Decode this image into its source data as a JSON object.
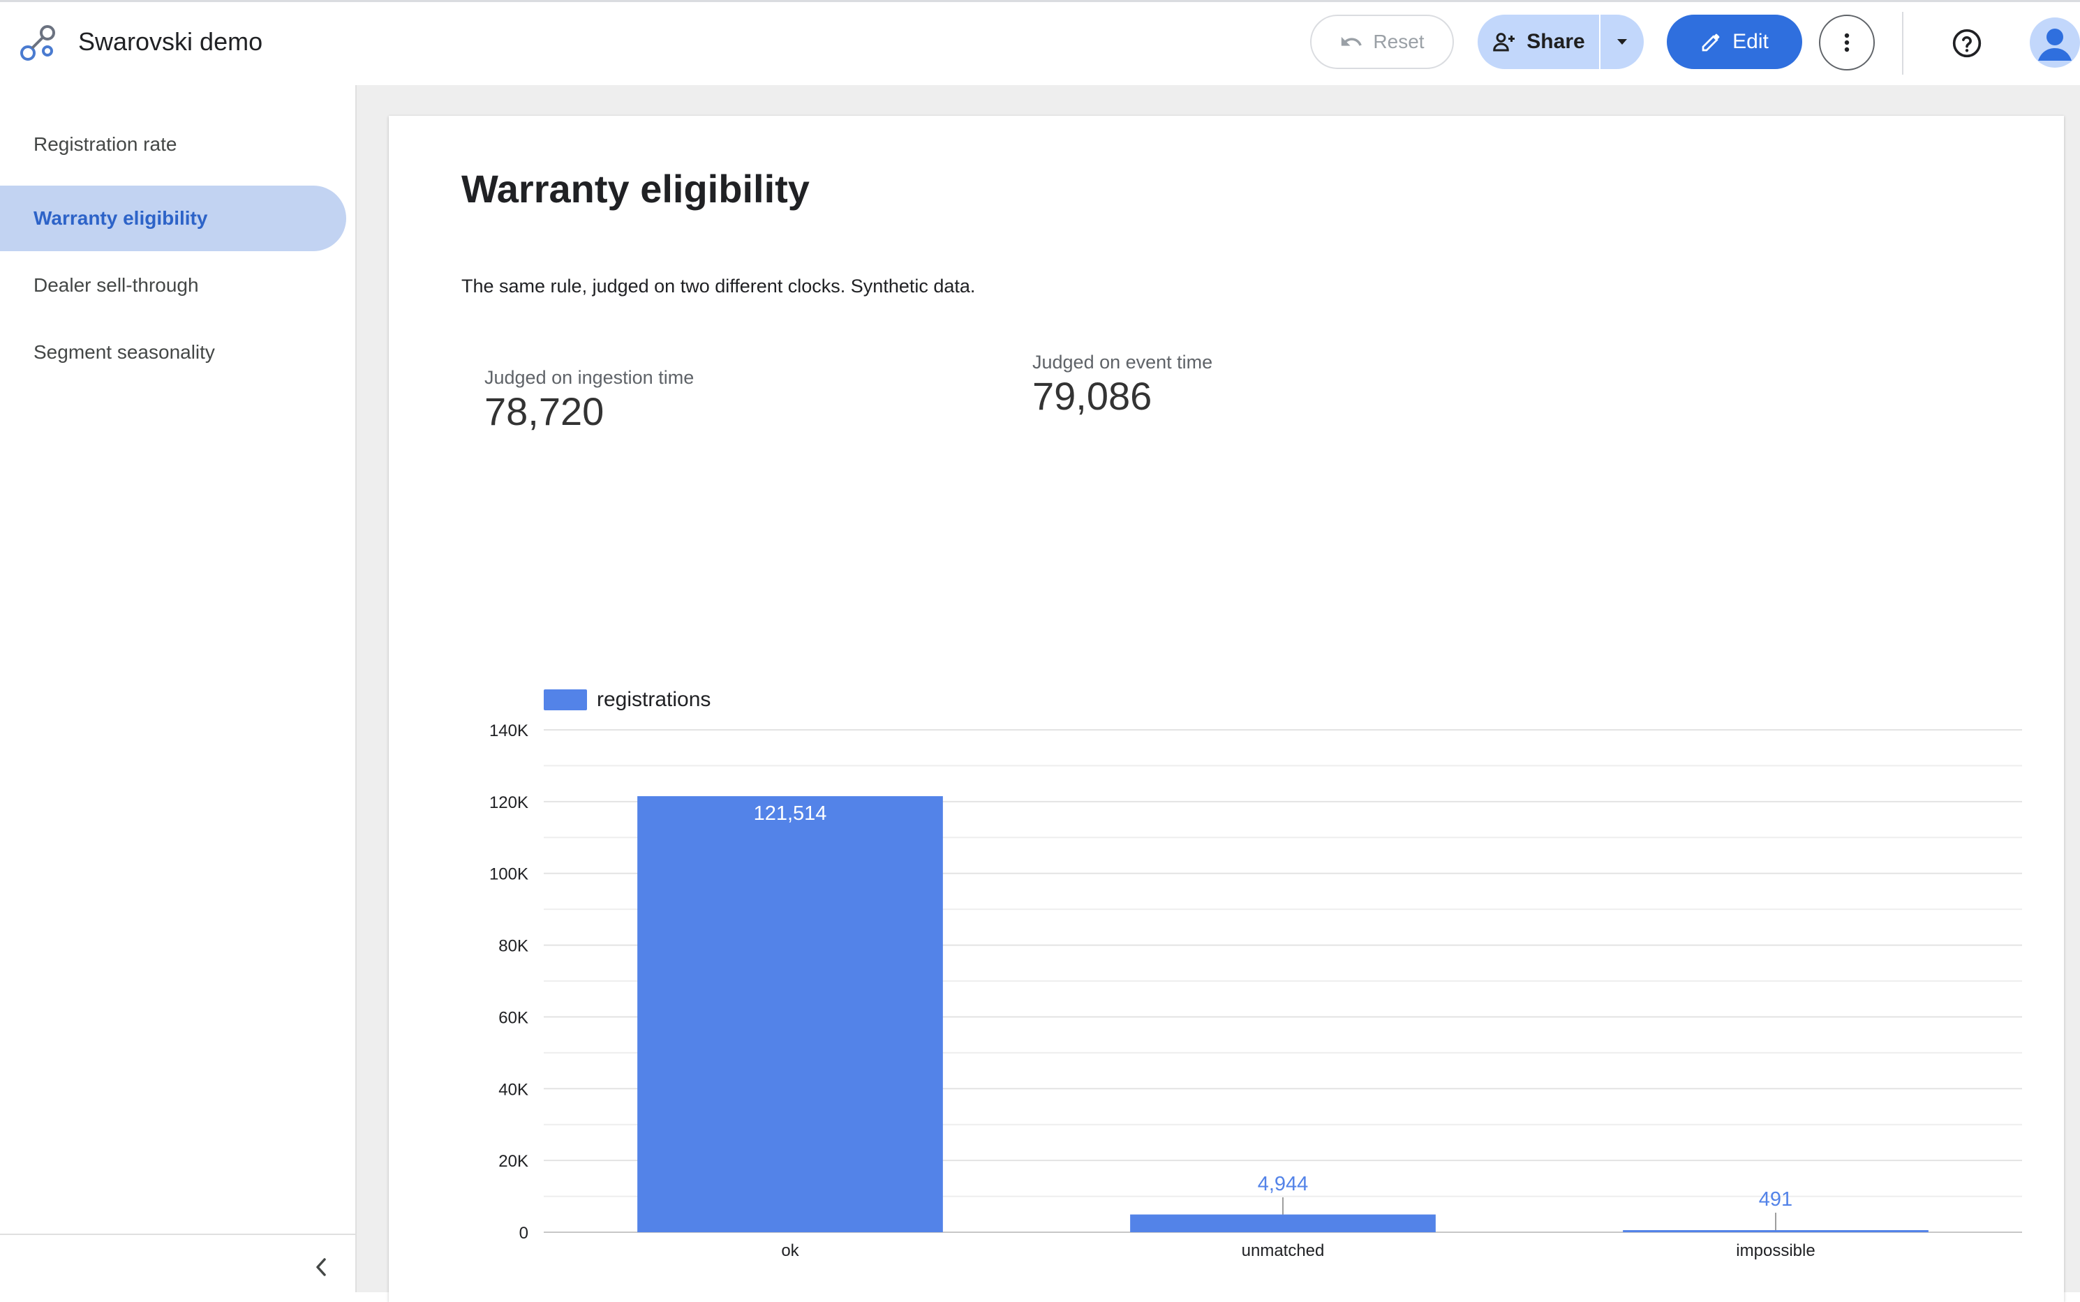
{
  "header": {
    "app_title": "Swarovski demo",
    "logo_icon": "report-logo-icon",
    "reset_label": "Reset",
    "share_label": "Share",
    "edit_label": "Edit",
    "accent_color": "#2f6fde"
  },
  "sidebar": {
    "items": [
      {
        "label": "Registration rate",
        "active": false
      },
      {
        "label": "Warranty eligibility",
        "active": true
      },
      {
        "label": "Dealer sell-through",
        "active": false
      },
      {
        "label": "Segment seasonality",
        "active": false
      }
    ]
  },
  "page": {
    "title": "Warranty eligibility",
    "subtitle": "The same rule, judged on two different clocks. Synthetic data.",
    "scorecards": [
      {
        "label": "Judged on ingestion time",
        "value": "78,720"
      },
      {
        "label": "Judged on event time",
        "value": "79,086"
      }
    ]
  },
  "chart_data": {
    "type": "bar",
    "title": "",
    "xlabel": "",
    "ylabel": "",
    "categories": [
      "ok",
      "unmatched",
      "impossible"
    ],
    "series": [
      {
        "name": "registrations",
        "values": [
          121514,
          4944,
          491
        ],
        "color": "#5383e8"
      }
    ],
    "data_labels": [
      "121,514",
      "4,944",
      "491"
    ],
    "yticks": [
      0,
      20000,
      40000,
      60000,
      80000,
      100000,
      120000,
      140000
    ],
    "ytick_labels": [
      "0",
      "20K",
      "40K",
      "60K",
      "80K",
      "100K",
      "120K",
      "140K"
    ],
    "ylim": [
      0,
      140000
    ],
    "grid": true,
    "legend_position": "top-left"
  }
}
